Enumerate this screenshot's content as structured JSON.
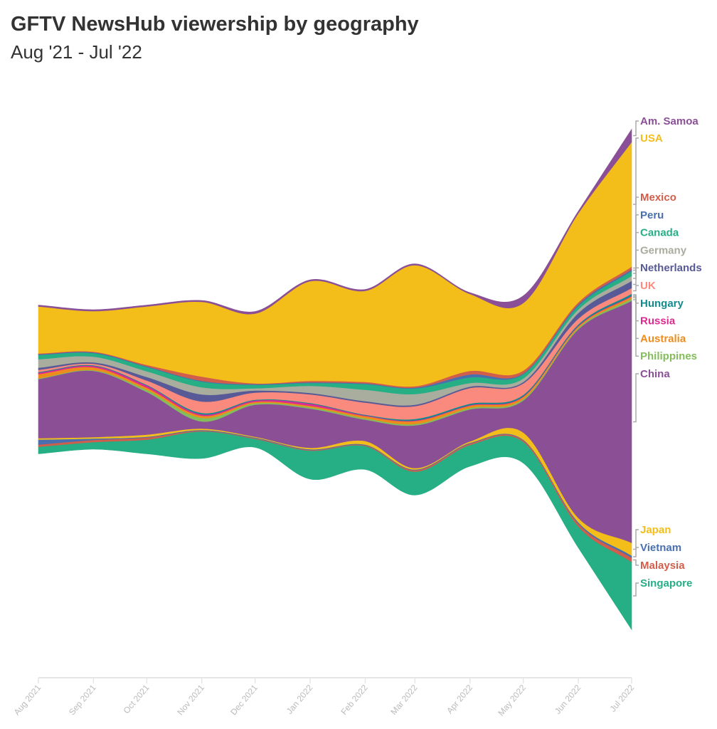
{
  "header": {
    "title": "GFTV NewsHub viewership by geography",
    "subtitle": "Aug '21 - Jul '22"
  },
  "chart_data": {
    "type": "area",
    "layout": "streamgraph (centered silhouette)",
    "title": "GFTV NewsHub viewership by geography",
    "subtitle": "Aug '21 - Jul '22",
    "x": [
      "2021-08-01",
      "2021-09-01",
      "2021-10-01",
      "2021-11-01",
      "2021-12-01",
      "2022-01-01",
      "2022-02-01",
      "2022-03-01",
      "2022-04-01",
      "2022-05-01",
      "2022-06-01",
      "2022-07-01"
    ],
    "x_tick_labels": [
      "Aug 2021",
      "Sep 2021",
      "Oct 2021",
      "Nov 2021",
      "Dec 2021",
      "Jan 2022",
      "Feb 2022",
      "Mar 2022",
      "Apr 2022",
      "May 2022",
      "Jun 2022",
      "Jul 2022"
    ],
    "y_axis": "none (relative values)",
    "grid": false,
    "legend": "direct labels at right",
    "series": [
      {
        "name": "Singapore",
        "color": "#26ae85",
        "values": [
          10,
          10,
          20,
          38,
          12,
          40,
          33,
          33,
          30,
          30,
          30,
          95
        ]
      },
      {
        "name": "Malaysia",
        "color": "#d05e4b",
        "values": [
          3,
          3,
          3,
          1,
          1,
          1,
          1,
          2,
          2,
          2,
          4,
          6
        ]
      },
      {
        "name": "Vietnam",
        "color": "#4a6fae",
        "values": [
          7,
          2,
          1,
          1,
          1,
          1,
          1,
          1,
          1,
          1,
          2,
          3
        ]
      },
      {
        "name": "Japan",
        "color": "#f3be1a",
        "values": [
          2,
          2,
          3,
          2,
          1,
          2,
          5,
          2,
          2,
          10,
          6,
          18
        ]
      },
      {
        "name": "China",
        "color": "#8b4f96",
        "values": [
          83,
          93,
          60,
          10,
          45,
          55,
          30,
          60,
          45,
          45,
          265,
          340
        ]
      },
      {
        "name": "Philippines",
        "color": "#83bd5c",
        "values": [
          1,
          1,
          3,
          5,
          2,
          2,
          2,
          2,
          2,
          2,
          2,
          3
        ]
      },
      {
        "name": "Australia",
        "color": "#ee8b1d",
        "values": [
          6,
          4,
          3,
          3,
          2,
          2,
          3,
          4,
          3,
          3,
          2,
          3
        ]
      },
      {
        "name": "Russia",
        "color": "#dc2b92",
        "values": [
          2,
          2,
          3,
          2,
          2,
          3,
          1,
          1,
          1,
          1,
          1,
          1
        ]
      },
      {
        "name": "Hungary",
        "color": "#128b8d",
        "values": [
          1,
          1,
          1,
          2,
          1,
          1,
          1,
          2,
          2,
          2,
          2,
          3
        ]
      },
      {
        "name": "UK",
        "color": "#fb8a7e",
        "values": [
          3,
          2,
          6,
          16,
          10,
          12,
          17,
          18,
          22,
          16,
          8,
          8
        ]
      },
      {
        "name": "Netherlands",
        "color": "#585a97",
        "values": [
          3,
          2,
          5,
          10,
          3,
          2,
          2,
          2,
          2,
          2,
          8,
          10
        ]
      },
      {
        "name": "Germany",
        "color": "#a8ad9e",
        "values": [
          12,
          8,
          8,
          10,
          3,
          10,
          16,
          15,
          5,
          5,
          5,
          7
        ]
      },
      {
        "name": "Canada",
        "color": "#26ae85",
        "values": [
          6,
          5,
          6,
          8,
          5,
          4,
          8,
          8,
          8,
          6,
          5,
          7
        ]
      },
      {
        "name": "Peru",
        "color": "#4a6fae",
        "values": [
          1,
          1,
          1,
          1,
          1,
          1,
          1,
          1,
          4,
          1,
          2,
          2
        ]
      },
      {
        "name": "Mexico",
        "color": "#d05e4b",
        "values": [
          1,
          1,
          2,
          6,
          1,
          2,
          2,
          2,
          5,
          4,
          3,
          4
        ]
      },
      {
        "name": "USA",
        "color": "#f3be1a",
        "values": [
          66,
          57,
          82,
          105,
          98,
          140,
          128,
          170,
          108,
          95,
          125,
          175
        ]
      },
      {
        "name": "Am. Samoa",
        "color": "#8a4f96",
        "values": [
          2,
          2,
          2,
          2,
          3,
          2,
          2,
          2,
          2,
          10,
          3,
          18
        ]
      }
    ]
  }
}
